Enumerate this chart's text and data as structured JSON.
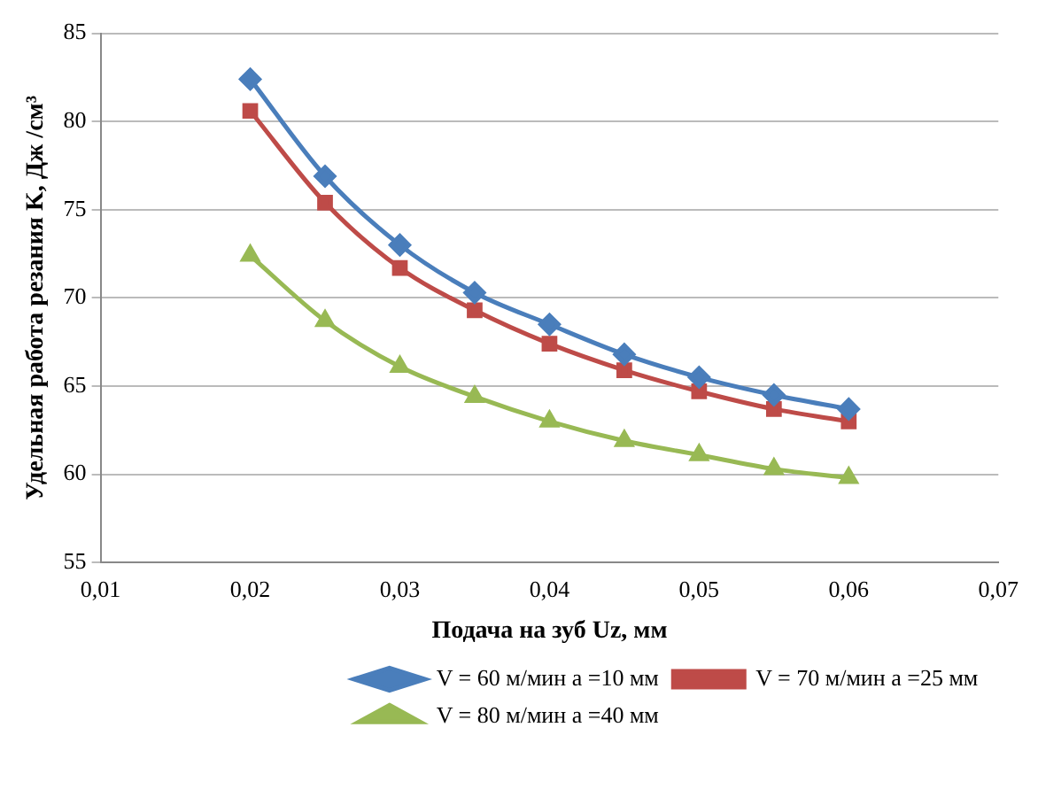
{
  "chart_data": {
    "type": "line",
    "xlabel": "Подача на зуб Uz, мм",
    "ylabel": "Удельная работа резания K, Дж /см³",
    "x": [
      0.02,
      0.025,
      0.03,
      0.035,
      0.04,
      0.045,
      0.05,
      0.055,
      0.06
    ],
    "series": [
      {
        "name": "V = 60 м/мин а =10 мм",
        "color": "#4a7ebb",
        "marker": "diamond",
        "values": [
          82.4,
          76.9,
          73.0,
          70.3,
          68.5,
          66.8,
          65.5,
          64.5,
          63.7
        ]
      },
      {
        "name": "V = 70 м/мин а =25 мм",
        "color": "#be4b48",
        "marker": "square",
        "values": [
          80.6,
          75.4,
          71.7,
          69.3,
          67.4,
          65.9,
          64.7,
          63.7,
          63.0
        ]
      },
      {
        "name": "V = 80 м/мин а =40 мм",
        "color": "#98b954",
        "marker": "triangle",
        "values": [
          72.4,
          68.7,
          66.1,
          64.4,
          63.0,
          61.9,
          61.1,
          60.3,
          59.8
        ]
      }
    ],
    "xlim": [
      0.01,
      0.07
    ],
    "xticks": [
      {
        "value": 0.01,
        "label": "0,01"
      },
      {
        "value": 0.02,
        "label": "0,02"
      },
      {
        "value": 0.03,
        "label": "0,03"
      },
      {
        "value": 0.04,
        "label": "0,04"
      },
      {
        "value": 0.05,
        "label": "0,05"
      },
      {
        "value": 0.06,
        "label": "0,06"
      },
      {
        "value": 0.07,
        "label": "0,07"
      }
    ],
    "ylim": [
      55,
      85
    ],
    "yticks": [
      55,
      60,
      65,
      70,
      75,
      80,
      85
    ],
    "grid": "y",
    "legend": "bottom"
  }
}
